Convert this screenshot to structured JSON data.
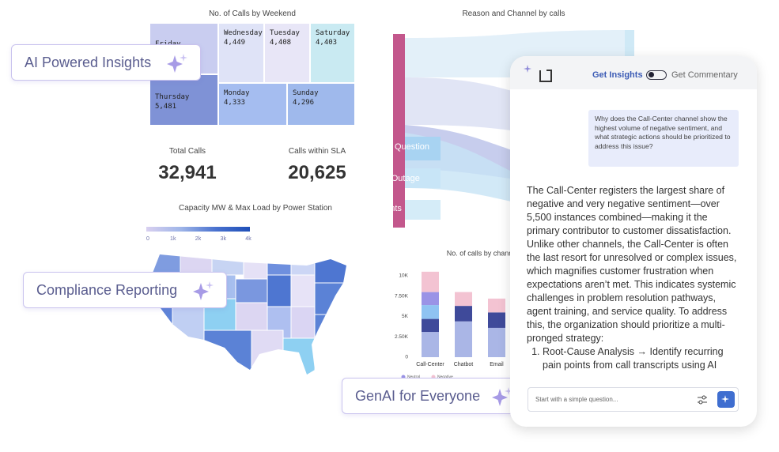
{
  "badges": [
    "AI Powered Insights",
    "Compliance Reporting",
    "GenAI for Everyone"
  ],
  "treemap": {
    "title": "No. of Calls by Weekend",
    "cells": [
      {
        "label": "Friday",
        "value": ""
      },
      {
        "label": "Thursday",
        "value": "5,481"
      },
      {
        "label": "Wednesday",
        "value": "4,449"
      },
      {
        "label": "Tuesday",
        "value": "4,408"
      },
      {
        "label": "Saturday",
        "value": "4,403"
      },
      {
        "label": "Monday",
        "value": "4,333"
      },
      {
        "label": "Sunday",
        "value": "4,296"
      }
    ]
  },
  "kpis": [
    {
      "label": "Total Calls",
      "value": "32,941"
    },
    {
      "label": "Calls within SLA",
      "value": "20,625"
    }
  ],
  "map": {
    "title": "Capacity MW & Max Load by Power Station",
    "legend_ticks": [
      "0",
      "1k",
      "2k",
      "3k",
      "4k"
    ]
  },
  "sankey": {
    "title": "Reason and Channel by calls",
    "labels": [
      "Question",
      "Service Outage",
      "Payments"
    ]
  },
  "chart_data": {
    "type": "bar",
    "title": "No. of calls by channel & sentiment",
    "categories": [
      "Call-Center",
      "Chatbot",
      "Email"
    ],
    "series": [
      {
        "name": null,
        "color": "#aab6e6",
        "values": [
          3100,
          4400,
          3600
        ]
      },
      {
        "name": null,
        "color": "#3f4a9a",
        "values": [
          1600,
          1900,
          1900
        ]
      },
      {
        "name": null,
        "color": "#8fc3f2",
        "values": [
          1700,
          0,
          0
        ]
      },
      {
        "name": "Neutral",
        "color": "#9a93e6",
        "values": [
          1600,
          0,
          0
        ]
      },
      {
        "name": "Negative",
        "color": "#f3c3d2",
        "values": [
          2500,
          1700,
          1700
        ]
      }
    ],
    "ylim": [
      0,
      10000
    ],
    "yticks": [
      0,
      {
        "value": 2500,
        "label": "2.50K"
      },
      {
        "value": 5000,
        "label": "5K"
      },
      {
        "value": 7500,
        "label": "7.50K"
      },
      {
        "value": 10000,
        "label": "10K"
      }
    ]
  },
  "chat": {
    "tabs": [
      "Get Insights",
      "Get Commentary"
    ],
    "question": "Why does the Call-Center channel show the highest volume of negative sentiment, and what strategic actions should be prioritized to address this issue?",
    "answer": "The Call-Center registers the largest share of negative and very negative sentiment—over 5,500 instances combined—making it the primary contributor to customer dissatisfaction. Unlike other channels, the Call-Center is often the last resort for unresolved or complex issues, which magnifies customer frustration when expectations aren’t met. This indicates systemic challenges in problem resolution pathways, agent training, and service quality. To address this, the organization should prioritize a multi-pronged strategy:",
    "list": [
      "Root-Cause Analysis → Identify recurring pain points from call transcripts using AI"
    ],
    "placeholder": "Start with a simple question..."
  }
}
